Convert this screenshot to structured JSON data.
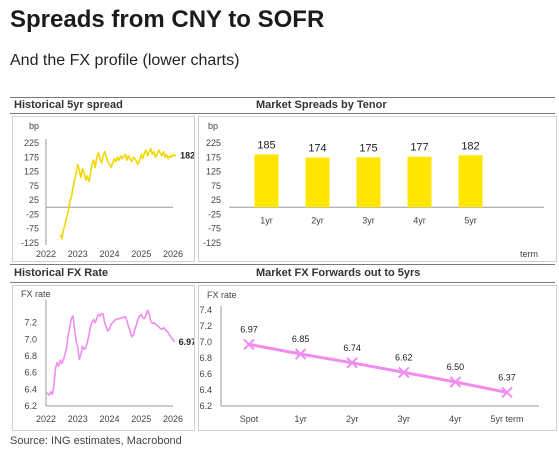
{
  "header": {
    "title": "Spreads from CNY to SOFR",
    "subtitle": "And the FX profile (lower charts)"
  },
  "sections": {
    "top_left": "Historical 5yr spread",
    "top_right": "Market Spreads by Tenor",
    "bottom_left": "Historical FX Rate",
    "bottom_right": "Market FX Forwards out to 5yrs"
  },
  "footer": {
    "source": "Source: ING estimates, Macrobond"
  },
  "colors": {
    "yellow": "#FFE600",
    "yellow_line": "#F2D800",
    "pink": "#F08CF0",
    "axis": "#999999",
    "text": "#444444"
  },
  "chart_data": [
    {
      "id": "hist_spread",
      "type": "line",
      "title": "Historical 5yr spread",
      "ylabel": "bp",
      "ylim": [
        -125,
        225
      ],
      "yticks": [
        "225",
        "175",
        "125",
        "75",
        "25",
        "-25",
        "-75",
        "-125"
      ],
      "xticks": [
        "2022",
        "2023",
        "2024",
        "2025",
        "2026"
      ],
      "end_label": "182",
      "series": [
        {
          "color": "#F2D800",
          "points": [
            [
              2022.45,
              -95
            ],
            [
              2022.5,
              -110
            ],
            [
              2022.55,
              -80
            ],
            [
              2022.6,
              -60
            ],
            [
              2022.65,
              -35
            ],
            [
              2022.7,
              -15
            ],
            [
              2022.75,
              20
            ],
            [
              2022.8,
              35
            ],
            [
              2022.85,
              70
            ],
            [
              2022.9,
              95
            ],
            [
              2022.95,
              120
            ],
            [
              2023.0,
              150
            ],
            [
              2023.05,
              130
            ],
            [
              2023.1,
              105
            ],
            [
              2023.15,
              135
            ],
            [
              2023.2,
              120
            ],
            [
              2023.25,
              95
            ],
            [
              2023.3,
              110
            ],
            [
              2023.35,
              90
            ],
            [
              2023.4,
              120
            ],
            [
              2023.45,
              150
            ],
            [
              2023.5,
              165
            ],
            [
              2023.55,
              140
            ],
            [
              2023.6,
              175
            ],
            [
              2023.65,
              190
            ],
            [
              2023.7,
              170
            ],
            [
              2023.75,
              155
            ],
            [
              2023.8,
              180
            ],
            [
              2023.85,
              195
            ],
            [
              2023.9,
              175
            ],
            [
              2023.95,
              160
            ],
            [
              2024.0,
              150
            ],
            [
              2024.05,
              140
            ],
            [
              2024.1,
              155
            ],
            [
              2024.15,
              170
            ],
            [
              2024.2,
              160
            ],
            [
              2024.25,
              175
            ],
            [
              2024.3,
              165
            ],
            [
              2024.35,
              180
            ],
            [
              2024.4,
              170
            ],
            [
              2024.5,
              185
            ],
            [
              2024.55,
              165
            ],
            [
              2024.6,
              180
            ],
            [
              2024.7,
              160
            ],
            [
              2024.75,
              175
            ],
            [
              2024.8,
              170
            ],
            [
              2024.9,
              150
            ],
            [
              2024.95,
              165
            ],
            [
              2025.0,
              185
            ],
            [
              2025.05,
              170
            ],
            [
              2025.1,
              190
            ],
            [
              2025.15,
              200
            ],
            [
              2025.2,
              180
            ],
            [
              2025.25,
              195
            ],
            [
              2025.3,
              205
            ],
            [
              2025.35,
              185
            ],
            [
              2025.4,
              195
            ],
            [
              2025.45,
              175
            ],
            [
              2025.5,
              185
            ],
            [
              2025.55,
              200
            ],
            [
              2025.6,
              190
            ],
            [
              2025.65,
              180
            ],
            [
              2025.7,
              195
            ],
            [
              2025.75,
              175
            ],
            [
              2025.8,
              185
            ],
            [
              2025.85,
              170
            ],
            [
              2025.9,
              180
            ],
            [
              2025.95,
              175
            ],
            [
              2026.0,
              185
            ],
            [
              2026.05,
              180
            ],
            [
              2026.1,
              182
            ]
          ]
        }
      ]
    },
    {
      "id": "spreads_tenor",
      "type": "bar",
      "title": "Market Spreads by Tenor",
      "ylabel": "bp",
      "xlabel": "term",
      "ylim": [
        -125,
        225
      ],
      "yticks": [
        "225",
        "175",
        "125",
        "75",
        "25",
        "-25",
        "-75",
        "-125"
      ],
      "categories": [
        "1yr",
        "2yr",
        "3yr",
        "4yr",
        "5yr"
      ],
      "values": [
        185,
        174,
        175,
        177,
        182
      ],
      "color": "#FFE600"
    },
    {
      "id": "hist_fx",
      "type": "line",
      "title": "Historical FX Rate",
      "ylabel": "FX rate",
      "ylim": [
        6.2,
        7.4
      ],
      "yticks": [
        "7.2",
        "7.0",
        "6.8",
        "6.6",
        "6.4",
        "6.2"
      ],
      "xticks": [
        "2022",
        "2023",
        "2024",
        "2025",
        "2026"
      ],
      "end_label": "6.97",
      "series": [
        {
          "color": "#F08CF0",
          "points": [
            [
              2022.0,
              6.36
            ],
            [
              2022.05,
              6.35
            ],
            [
              2022.1,
              6.33
            ],
            [
              2022.15,
              6.37
            ],
            [
              2022.2,
              6.34
            ],
            [
              2022.25,
              6.45
            ],
            [
              2022.3,
              6.65
            ],
            [
              2022.35,
              6.72
            ],
            [
              2022.4,
              6.68
            ],
            [
              2022.45,
              6.75
            ],
            [
              2022.5,
              6.71
            ],
            [
              2022.55,
              6.76
            ],
            [
              2022.6,
              6.82
            ],
            [
              2022.65,
              6.9
            ],
            [
              2022.7,
              7.05
            ],
            [
              2022.75,
              7.15
            ],
            [
              2022.8,
              7.25
            ],
            [
              2022.85,
              7.28
            ],
            [
              2022.9,
              7.12
            ],
            [
              2022.95,
              6.98
            ],
            [
              2023.0,
              6.9
            ],
            [
              2023.05,
              6.76
            ],
            [
              2023.1,
              6.82
            ],
            [
              2023.15,
              6.92
            ],
            [
              2023.2,
              6.88
            ],
            [
              2023.25,
              6.9
            ],
            [
              2023.3,
              6.96
            ],
            [
              2023.35,
              7.05
            ],
            [
              2023.4,
              7.15
            ],
            [
              2023.45,
              7.2
            ],
            [
              2023.5,
              7.24
            ],
            [
              2023.55,
              7.2
            ],
            [
              2023.6,
              7.25
            ],
            [
              2023.65,
              7.3
            ],
            [
              2023.7,
              7.28
            ],
            [
              2023.75,
              7.31
            ],
            [
              2023.8,
              7.3
            ],
            [
              2023.85,
              7.2
            ],
            [
              2023.9,
              7.15
            ],
            [
              2023.95,
              7.1
            ],
            [
              2024.0,
              7.12
            ],
            [
              2024.05,
              7.18
            ],
            [
              2024.1,
              7.2
            ],
            [
              2024.15,
              7.22
            ],
            [
              2024.2,
              7.24
            ],
            [
              2024.3,
              7.25
            ],
            [
              2024.4,
              7.26
            ],
            [
              2024.5,
              7.27
            ],
            [
              2024.55,
              7.22
            ],
            [
              2024.6,
              7.15
            ],
            [
              2024.65,
              7.1
            ],
            [
              2024.7,
              7.03
            ],
            [
              2024.75,
              7.05
            ],
            [
              2024.8,
              7.12
            ],
            [
              2024.85,
              7.18
            ],
            [
              2024.9,
              7.24
            ],
            [
              2024.95,
              7.28
            ],
            [
              2025.0,
              7.3
            ],
            [
              2025.05,
              7.26
            ],
            [
              2025.1,
              7.25
            ],
            [
              2025.15,
              7.29
            ],
            [
              2025.2,
              7.35
            ],
            [
              2025.25,
              7.3
            ],
            [
              2025.3,
              7.22
            ],
            [
              2025.35,
              7.19
            ],
            [
              2025.4,
              7.2
            ],
            [
              2025.45,
              7.18
            ],
            [
              2025.5,
              7.17
            ],
            [
              2025.55,
              7.15
            ],
            [
              2025.6,
              7.13
            ],
            [
              2025.65,
              7.12
            ],
            [
              2025.7,
              7.14
            ],
            [
              2025.75,
              7.12
            ],
            [
              2025.8,
              7.1
            ],
            [
              2025.85,
              7.08
            ],
            [
              2025.9,
              7.05
            ],
            [
              2025.95,
              7.02
            ],
            [
              2026.0,
              7.0
            ],
            [
              2026.05,
              6.97
            ]
          ]
        }
      ]
    },
    {
      "id": "fx_forwards",
      "type": "line",
      "title": "Market FX Forwards out to 5yrs",
      "ylabel": "FX rate",
      "ylim": [
        6.2,
        7.4
      ],
      "yticks": [
        "7.4",
        "7.2",
        "7.0",
        "6.8",
        "6.6",
        "6.4",
        "6.2"
      ],
      "categories": [
        "Spot",
        "1yr",
        "2yr",
        "3yr",
        "4yr",
        "5yr term"
      ],
      "values": [
        6.97,
        6.85,
        6.74,
        6.62,
        6.5,
        6.37
      ],
      "value_labels": [
        "6.97",
        "6.85",
        "6.74",
        "6.62",
        "6.50",
        "6.37"
      ],
      "color": "#F08CF0"
    }
  ]
}
